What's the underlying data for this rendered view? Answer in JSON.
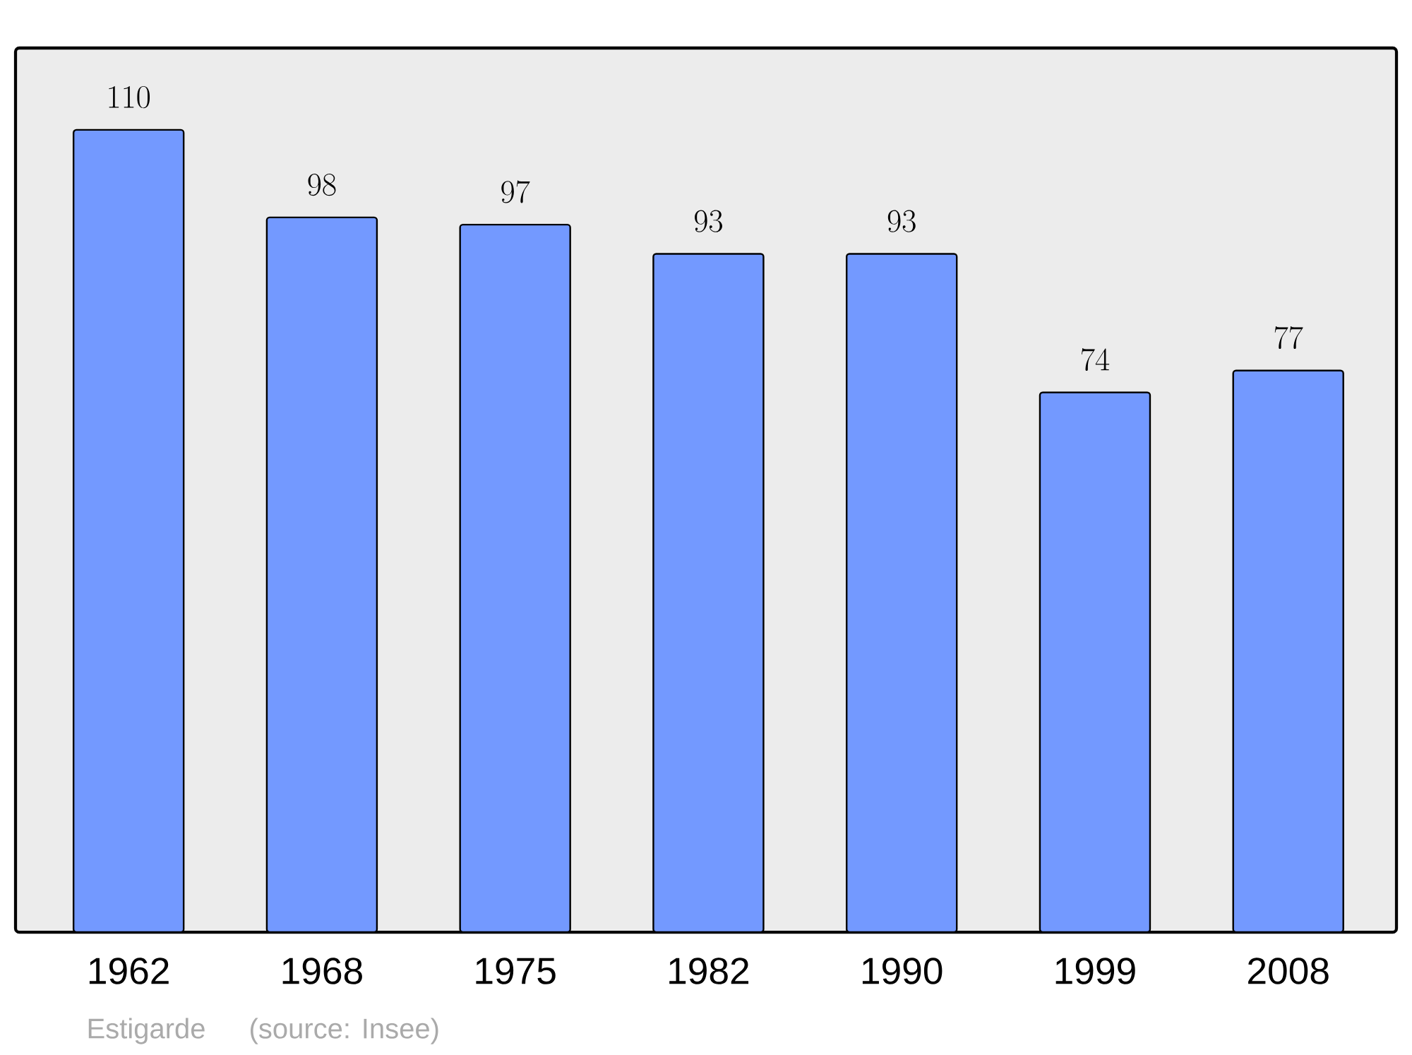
{
  "chart_data": {
    "type": "bar",
    "categories": [
      "1962",
      "1968",
      "1975",
      "1982",
      "1990",
      "1999",
      "2008"
    ],
    "values": [
      110,
      98,
      97,
      93,
      93,
      74,
      77
    ],
    "color": "#7399ff",
    "data_labels": true,
    "annotations": [
      "Estigarde",
      "(source: Insee)"
    ]
  }
}
